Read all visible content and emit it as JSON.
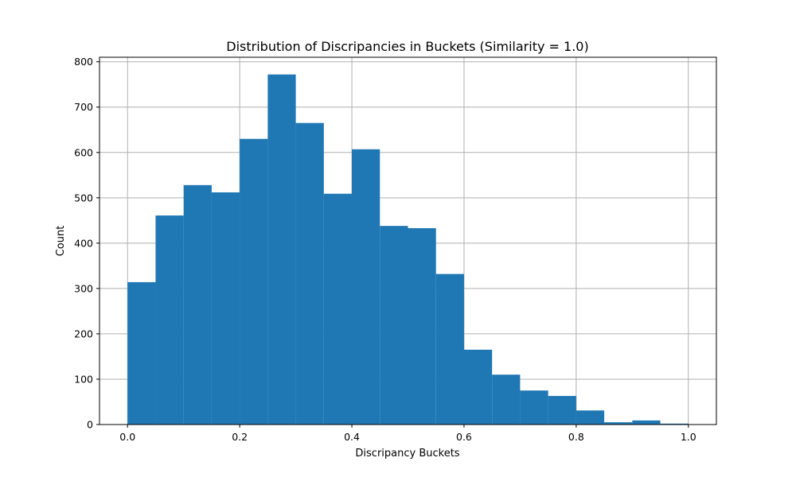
{
  "chart_data": {
    "type": "bar",
    "title": "Distribution of Discripancies in Buckets (Similarity = 1.0)",
    "xlabel": "Discripancy Buckets",
    "ylabel": "Count",
    "bin_edges": [
      0.0,
      0.05,
      0.1,
      0.15,
      0.2,
      0.25,
      0.3,
      0.35,
      0.4,
      0.45,
      0.5,
      0.55,
      0.6,
      0.65,
      0.7,
      0.75,
      0.8,
      0.85,
      0.9,
      0.95,
      1.0
    ],
    "values": [
      314,
      461,
      528,
      512,
      630,
      772,
      665,
      509,
      607,
      438,
      433,
      332,
      165,
      110,
      75,
      63,
      31,
      5,
      9,
      2
    ],
    "xlim": [
      -0.05,
      1.05
    ],
    "ylim": [
      0,
      810
    ],
    "x_ticks": [
      "0.0",
      "0.2",
      "0.4",
      "0.6",
      "0.8",
      "1.0"
    ],
    "y_ticks": [
      "0",
      "100",
      "200",
      "300",
      "400",
      "500",
      "600",
      "700",
      "800"
    ],
    "grid": true,
    "bar_color": "#1f77b4"
  }
}
